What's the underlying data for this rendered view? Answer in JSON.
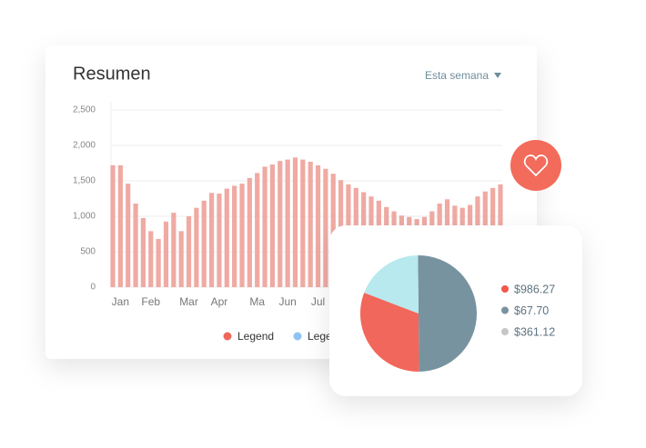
{
  "dropdown": "Esta semana",
  "chart_data": [
    {
      "type": "bar",
      "title": "Resumen",
      "categories": [
        null,
        "Jan",
        null,
        null,
        null,
        "Feb",
        null,
        null,
        null,
        null,
        "Mar",
        null,
        null,
        null,
        "Apr",
        null,
        null,
        null,
        null,
        "Ma",
        null,
        null,
        null,
        "Jun",
        null,
        null,
        null,
        "Jul",
        null,
        null,
        null,
        null,
        null,
        null,
        null,
        null,
        null,
        null,
        null,
        null,
        null,
        null,
        null,
        null,
        null,
        null,
        null,
        null,
        null,
        null,
        null,
        null
      ],
      "values": [
        1720,
        1720,
        1460,
        1180,
        975,
        790,
        680,
        925,
        1050,
        790,
        1000,
        1120,
        1220,
        1330,
        1320,
        1390,
        1430,
        1460,
        1540,
        1610,
        1700,
        1730,
        1780,
        1800,
        1830,
        1800,
        1770,
        1720,
        1670,
        1600,
        1510,
        1450,
        1400,
        1340,
        1280,
        1220,
        1130,
        1070,
        1010,
        990,
        960,
        990,
        1070,
        1180,
        1240,
        1150,
        1120,
        1160,
        1280,
        1350,
        1400,
        1450
      ],
      "color": "#efaaa3",
      "ylim": [
        0,
        2500
      ],
      "yticks": [
        0,
        500,
        {
          "value": 1000,
          "label": "1,000"
        },
        {
          "value": 1500,
          "label": "1,500"
        },
        {
          "value": 2000,
          "label": "2,000"
        },
        {
          "value": 2500,
          "label": "2,500"
        }
      ],
      "grid": true,
      "legend": [
        {
          "name": "Legend",
          "color": "#f0665a"
        },
        {
          "name": "Legend",
          "color": "#8ec3f4"
        }
      ]
    },
    {
      "type": "pie",
      "categories": [
        "$986.27",
        "$67.70",
        "$361.12"
      ],
      "values": [
        31,
        50,
        19
      ],
      "colors": [
        "#f2675b",
        "#7893a0",
        "#b7e9ee"
      ],
      "legend_colors": [
        "#f0584a",
        "#7893a0",
        "#c6c6c6"
      ]
    }
  ]
}
